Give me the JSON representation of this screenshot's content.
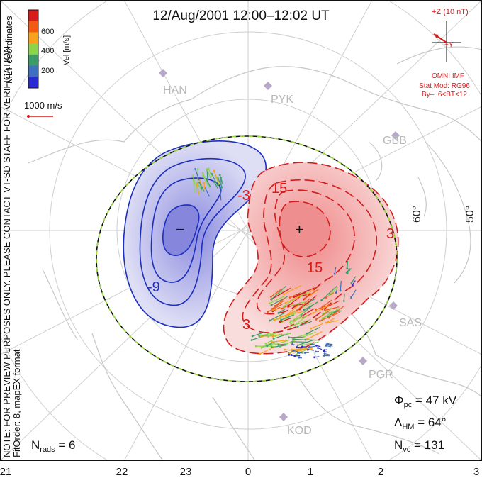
{
  "title": "12/Aug/2001  12:00–12:02 UT",
  "colorbar": {
    "ticks": [
      "600",
      "400",
      "200"
    ],
    "label": "Vel [m/s]",
    "colors": [
      "#d81c1c",
      "#f25a14",
      "#f7a21a",
      "#8cd44a",
      "#3a9a6a",
      "#3f6fbf",
      "#2a2ad0"
    ]
  },
  "mlt_coords_label": "MLT coordinates",
  "vector_scale_label": "1000 m/s",
  "side_note": "NOTE: FOR PREVIEW PURPOSES ONLY. PLEASE CONTACT VT-SD STAFF FOR VERIFICATION.",
  "fit_order": "FitOrder: 8, mapEX format",
  "imf": {
    "z_label": "+Z (10 nT)",
    "y_label": "+Y",
    "source": "OMNI IMF",
    "model_line1": "Stat Mod: RG96",
    "model_line2": "By–, 6<BT<12"
  },
  "stations": [
    "HAN",
    "PYK",
    "GBB",
    "SAS",
    "PGR",
    "KOD"
  ],
  "latitude_labels": [
    "60°",
    "50°"
  ],
  "contour_labels": {
    "neg": "-9",
    "pos": [
      "15",
      "15",
      "3",
      "-3",
      "3"
    ]
  },
  "cell_markers": {
    "min": "−",
    "max": "+"
  },
  "stats": {
    "phi_pc": "Φ",
    "phi_pc_sub": "pc",
    "phi_pc_value": " = 47 kV",
    "lambda_hm": "Λ",
    "lambda_hm_sub": "HM",
    "lambda_hm_value": " = 64°",
    "n_vc": "N",
    "n_vc_sub": "vc",
    "n_vc_value": " = 131",
    "n_rads": "N",
    "n_rads_sub": "rads",
    "n_rads_value": " = 6"
  },
  "mlt_axis": [
    "21",
    "22",
    "23",
    "0",
    "1",
    "2",
    "3"
  ]
}
